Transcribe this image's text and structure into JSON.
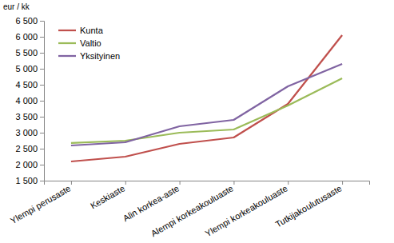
{
  "chart_data": {
    "type": "line",
    "y_label": "eur / kk",
    "categories": [
      "Ylempi perusaste",
      "Keskiaste",
      "Alin korkea-aste",
      "Alempi korkeakouluaste",
      "Ylempi korkeakouluaste",
      "Tutkijakoulutusaste"
    ],
    "series": [
      {
        "name": "Kunta",
        "color": "#c0504d",
        "values": [
          2100,
          2250,
          2650,
          2850,
          3900,
          6050
        ]
      },
      {
        "name": "Valtio",
        "color": "#9bbb59",
        "values": [
          2680,
          2750,
          3000,
          3100,
          3850,
          4700
        ]
      },
      {
        "name": "Yksityinen",
        "color": "#8064a2",
        "values": [
          2600,
          2700,
          3200,
          3400,
          4450,
          5150
        ]
      }
    ],
    "ylim": [
      1500,
      6500
    ],
    "yticks": [
      {
        "value": 1500,
        "label": "1 500"
      },
      {
        "value": 2000,
        "label": "2 000"
      },
      {
        "value": 2500,
        "label": "2 500"
      },
      {
        "value": 3000,
        "label": "3 000"
      },
      {
        "value": 3500,
        "label": "3 500"
      },
      {
        "value": 4000,
        "label": "4 000"
      },
      {
        "value": 4500,
        "label": "4 500"
      },
      {
        "value": 5000,
        "label": "5 000"
      },
      {
        "value": 5500,
        "label": "5 500"
      },
      {
        "value": 6000,
        "label": "6 000"
      },
      {
        "value": 6500,
        "label": "6 500"
      }
    ],
    "grid": false,
    "legend": "upper left"
  }
}
